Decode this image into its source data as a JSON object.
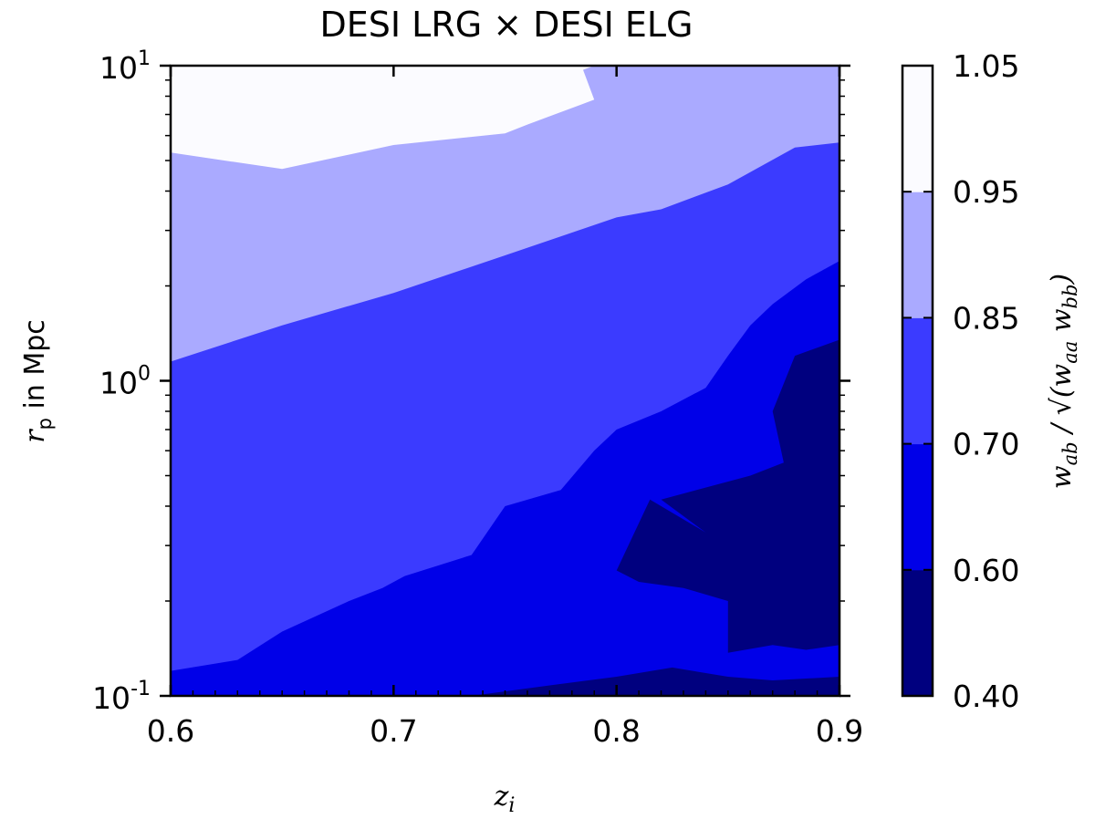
{
  "chart_data": {
    "type": "contour",
    "title": "DESI LRG × DESI ELG",
    "xlabel": "z_i",
    "ylabel": "r_p in Mpc",
    "colorbar_label": "w_ab / sqrt(w_aa w_bb)",
    "xlim": [
      0.6,
      0.9
    ],
    "ylim": [
      0.1,
      10
    ],
    "yscale": "log",
    "x_ticks": [
      "0.6",
      "0.7",
      "0.8",
      "0.9"
    ],
    "x_tick_values": [
      0.6,
      0.7,
      0.8,
      0.9
    ],
    "y_ticks": [
      {
        "base": "10",
        "exp": "-1",
        "value": 0.1
      },
      {
        "base": "10",
        "exp": "0",
        "value": 1
      },
      {
        "base": "10",
        "exp": "1",
        "value": 10
      }
    ],
    "levels": [
      0.4,
      0.6,
      0.7,
      0.85,
      0.95,
      1.05
    ],
    "level_labels": [
      "0.40",
      "0.60",
      "0.70",
      "0.85",
      "0.95",
      "1.05"
    ],
    "level_colors": [
      "#00007f",
      "#0000e8",
      "#3b3bff",
      "#aaaaff",
      "#fbfbff"
    ],
    "contour_boundaries": [
      {
        "level": 0.6,
        "points": [
          [
            0.735,
            0.1
          ],
          [
            0.77,
            0.108
          ],
          [
            0.8,
            0.115
          ],
          [
            0.825,
            0.123
          ],
          [
            0.85,
            0.115
          ],
          [
            0.87,
            0.112
          ],
          [
            0.9,
            0.115
          ]
        ]
      },
      {
        "level": 0.6,
        "points": [
          [
            0.823,
            0.1
          ],
          [
            0.84,
            0.1
          ],
          [
            0.85,
            0.104
          ],
          [
            0.865,
            0.1
          ]
        ]
      },
      {
        "level": 0.6,
        "points": [
          [
            0.835,
            0.165
          ],
          [
            0.85,
            0.19
          ],
          [
            0.872,
            0.168
          ],
          [
            0.85,
            0.163
          ],
          [
            0.835,
            0.165
          ]
        ]
      },
      {
        "level": 0.7,
        "points": [
          [
            0.6,
            0.11
          ],
          [
            0.61,
            0.103
          ],
          [
            0.625,
            0.1
          ]
        ]
      },
      {
        "level": 0.7,
        "points": [
          [
            0.68,
            0.1
          ],
          [
            0.7,
            0.106
          ],
          [
            0.75,
            0.113
          ],
          [
            0.765,
            0.11
          ],
          [
            0.77,
            0.12
          ],
          [
            0.78,
            0.125
          ],
          [
            0.8,
            0.13
          ],
          [
            0.81,
            0.12
          ],
          [
            0.825,
            0.125
          ],
          [
            0.84,
            0.13
          ],
          [
            0.85,
            0.137
          ],
          [
            0.87,
            0.145
          ],
          [
            0.885,
            0.14
          ],
          [
            0.9,
            0.145
          ]
        ]
      },
      {
        "level": 0.7,
        "points": [
          [
            0.85,
            0.2
          ],
          [
            0.83,
            0.22
          ],
          [
            0.81,
            0.23
          ],
          [
            0.8,
            0.25
          ],
          [
            0.815,
            0.42
          ],
          [
            0.84,
            0.33
          ],
          [
            0.82,
            0.42
          ],
          [
            0.86,
            0.5
          ],
          [
            0.875,
            0.55
          ],
          [
            0.87,
            0.8
          ],
          [
            0.88,
            1.2
          ],
          [
            0.9,
            1.35
          ]
        ]
      },
      {
        "level": 0.85,
        "points": [
          [
            0.6,
            0.12
          ],
          [
            0.63,
            0.13
          ],
          [
            0.65,
            0.16
          ],
          [
            0.68,
            0.2
          ],
          [
            0.695,
            0.22
          ],
          [
            0.705,
            0.24
          ],
          [
            0.735,
            0.28
          ],
          [
            0.75,
            0.4
          ],
          [
            0.775,
            0.45
          ],
          [
            0.79,
            0.6
          ],
          [
            0.8,
            0.7
          ],
          [
            0.82,
            0.8
          ],
          [
            0.84,
            0.95
          ],
          [
            0.85,
            1.2
          ],
          [
            0.86,
            1.5
          ],
          [
            0.87,
            1.75
          ],
          [
            0.885,
            2.1
          ],
          [
            0.9,
            2.4
          ]
        ]
      },
      {
        "level": 0.95,
        "points": [
          [
            0.6,
            1.15
          ],
          [
            0.65,
            1.5
          ],
          [
            0.7,
            1.9
          ],
          [
            0.75,
            2.5
          ],
          [
            0.8,
            3.3
          ],
          [
            0.82,
            3.5
          ],
          [
            0.85,
            4.2
          ],
          [
            0.88,
            5.5
          ],
          [
            0.9,
            5.7
          ]
        ]
      },
      {
        "level": 1.05,
        "points": [
          [
            0.6,
            5.3
          ],
          [
            0.65,
            4.7
          ],
          [
            0.7,
            5.6
          ],
          [
            0.75,
            6.1
          ],
          [
            0.76,
            6.5
          ],
          [
            0.79,
            7.8
          ],
          [
            0.785,
            9.7
          ],
          [
            0.79,
            10
          ]
        ]
      }
    ]
  }
}
